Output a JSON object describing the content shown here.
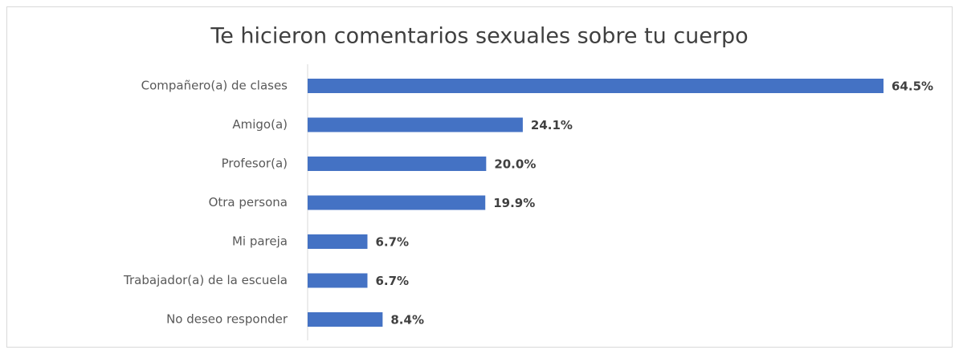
{
  "chart_data": {
    "type": "barh",
    "title": "Te hicieron comentarios sexuales sobre tu cuerpo",
    "categories": [
      "Compañero(a) de clases",
      "Amigo(a)",
      "Profesor(a)",
      "Otra persona",
      "Mi pareja",
      "Trabajador(a) de la escuela",
      "No deseo responder"
    ],
    "values": [
      64.5,
      24.1,
      20.0,
      19.9,
      6.7,
      6.7,
      8.4
    ],
    "value_labels": [
      "64.5%",
      "24.1%",
      "20.0%",
      "19.9%",
      "6.7%",
      "6.7%",
      "8.4%"
    ],
    "color": "#4472c4"
  }
}
